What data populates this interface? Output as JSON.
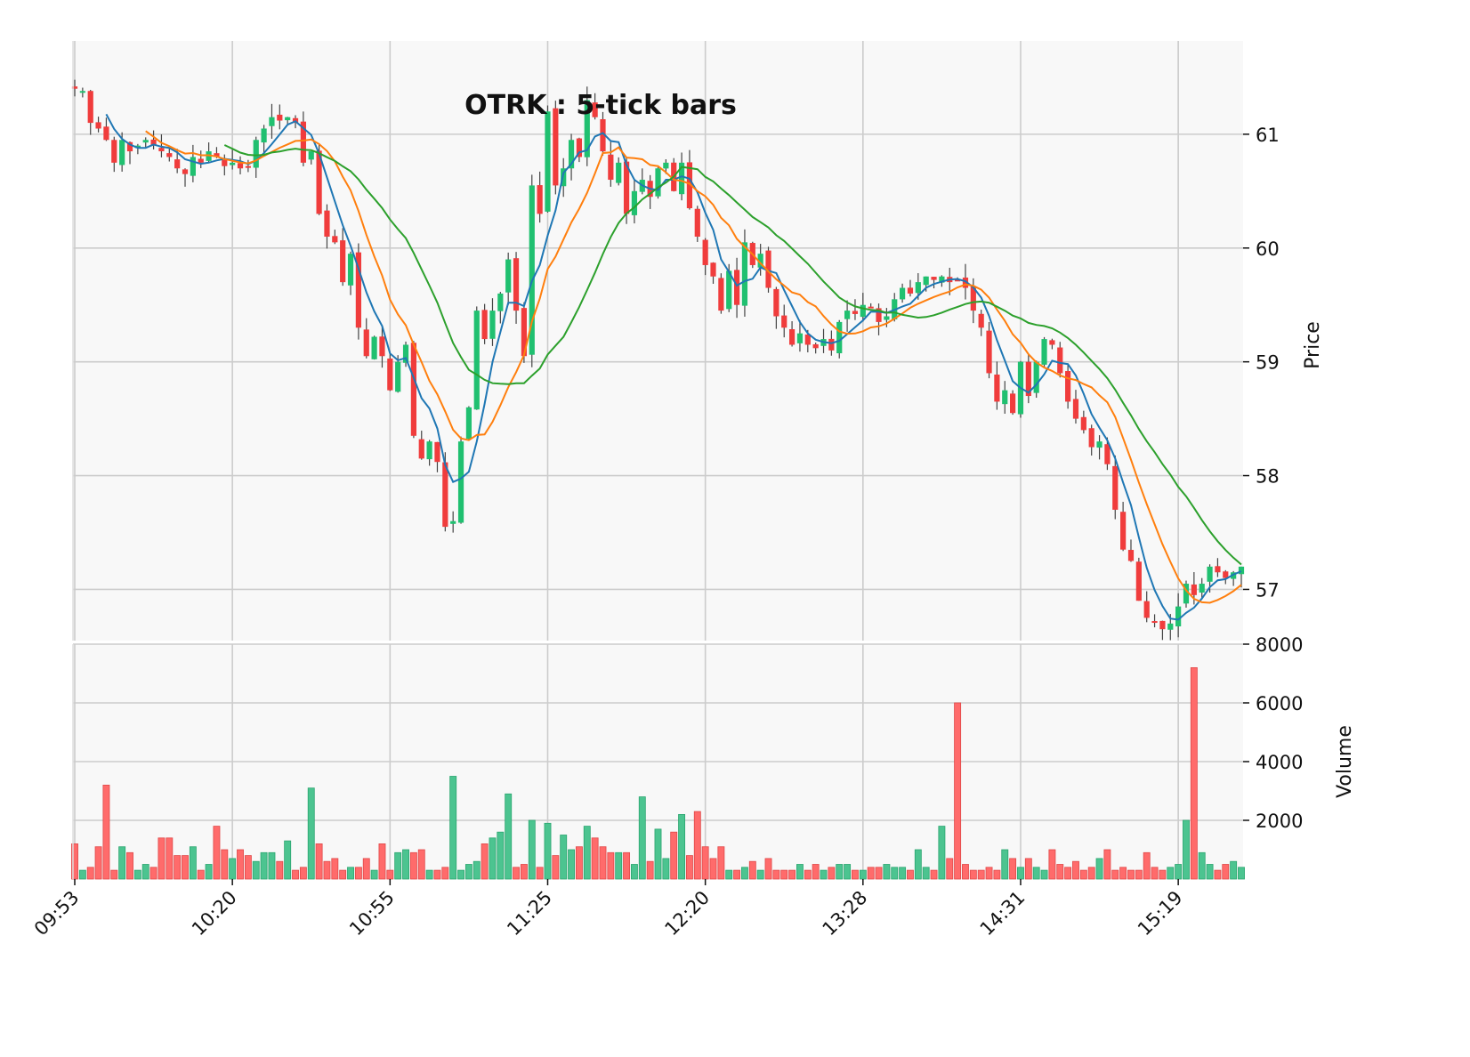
{
  "chart_data": {
    "type": "candlestick",
    "title": "OTRK : 5-tick bars",
    "colors": {
      "up": "#20c070",
      "down": "#f03c3c",
      "volume_up": "#4cc490",
      "volume_down": "#ff6b6b",
      "sma_fast": "#1f77b4",
      "sma_mid": "#ff7f0e",
      "sma_slow": "#2ca02c",
      "plot_background": "#f8f8f8",
      "grid": "#cccccc"
    },
    "grid": true,
    "price_panel": {
      "ylabel": "Price",
      "ylim": [
        56.55,
        61.82
      ],
      "yticks": [
        57,
        58,
        59,
        60,
        61
      ],
      "ytick_labels": [
        "57",
        "58",
        "59",
        "60",
        "61"
      ]
    },
    "volume_panel": {
      "ylabel": "Volume",
      "ylim": [
        0,
        8000
      ],
      "yticks": [
        2000,
        4000,
        6000,
        8000
      ],
      "ytick_labels": [
        "2000",
        "4000",
        "6000",
        "8000"
      ]
    },
    "x_ticks": [
      {
        "index": 0,
        "label": "09:53"
      },
      {
        "index": 20,
        "label": "10:20"
      },
      {
        "index": 40,
        "label": "10:55"
      },
      {
        "index": 60,
        "label": "11:25"
      },
      {
        "index": 80,
        "label": "12:20"
      },
      {
        "index": 100,
        "label": "13:28"
      },
      {
        "index": 120,
        "label": "14:31"
      },
      {
        "index": 140,
        "label": "15:19"
      }
    ],
    "bars_close_anchors": [
      [
        0,
        61.4
      ],
      [
        1,
        61.38
      ],
      [
        2,
        61.1
      ],
      [
        3,
        61.05
      ],
      [
        4,
        60.95
      ],
      [
        5,
        60.75
      ],
      [
        6,
        60.95
      ],
      [
        7,
        60.85
      ],
      [
        8,
        60.9
      ],
      [
        9,
        60.95
      ],
      [
        10,
        60.9
      ],
      [
        11,
        60.85
      ],
      [
        12,
        60.8
      ],
      [
        13,
        60.7
      ],
      [
        14,
        60.65
      ],
      [
        15,
        60.8
      ],
      [
        16,
        60.75
      ],
      [
        17,
        60.85
      ],
      [
        18,
        60.8
      ],
      [
        19,
        60.72
      ],
      [
        20,
        60.75
      ],
      [
        21,
        60.7
      ],
      [
        22,
        60.72
      ],
      [
        23,
        60.95
      ],
      [
        24,
        61.05
      ],
      [
        25,
        61.15
      ],
      [
        26,
        61.12
      ],
      [
        27,
        61.15
      ],
      [
        28,
        61.1
      ],
      [
        29,
        60.75
      ],
      [
        30,
        60.85
      ],
      [
        31,
        60.3
      ],
      [
        32,
        60.1
      ],
      [
        33,
        60.05
      ],
      [
        34,
        59.7
      ],
      [
        35,
        59.95
      ],
      [
        36,
        59.3
      ],
      [
        37,
        59.05
      ],
      [
        38,
        59.22
      ],
      [
        39,
        59.05
      ],
      [
        40,
        58.75
      ],
      [
        41,
        59.0
      ],
      [
        42,
        59.15
      ],
      [
        43,
        58.35
      ],
      [
        44,
        58.15
      ],
      [
        45,
        58.3
      ],
      [
        46,
        58.12
      ],
      [
        47,
        57.55
      ],
      [
        48,
        57.6
      ],
      [
        49,
        58.3
      ],
      [
        50,
        58.6
      ],
      [
        51,
        59.45
      ],
      [
        52,
        59.2
      ],
      [
        53,
        59.45
      ],
      [
        54,
        59.6
      ],
      [
        55,
        59.9
      ],
      [
        56,
        59.45
      ],
      [
        57,
        59.05
      ],
      [
        58,
        60.55
      ],
      [
        59,
        60.3
      ],
      [
        60,
        61.2
      ],
      [
        61,
        60.55
      ],
      [
        62,
        60.7
      ],
      [
        63,
        60.95
      ],
      [
        64,
        60.8
      ],
      [
        65,
        61.3
      ],
      [
        66,
        61.15
      ],
      [
        67,
        60.85
      ],
      [
        68,
        60.6
      ],
      [
        69,
        60.75
      ],
      [
        70,
        60.3
      ],
      [
        71,
        60.5
      ],
      [
        72,
        60.6
      ],
      [
        73,
        60.45
      ],
      [
        74,
        60.7
      ],
      [
        75,
        60.75
      ],
      [
        76,
        60.5
      ],
      [
        77,
        60.75
      ],
      [
        78,
        60.35
      ],
      [
        79,
        60.1
      ],
      [
        80,
        59.85
      ],
      [
        81,
        59.75
      ],
      [
        82,
        59.45
      ],
      [
        83,
        59.8
      ],
      [
        84,
        59.5
      ],
      [
        85,
        60.05
      ],
      [
        86,
        59.85
      ],
      [
        87,
        59.95
      ],
      [
        88,
        59.65
      ],
      [
        89,
        59.4
      ],
      [
        90,
        59.3
      ],
      [
        91,
        59.15
      ],
      [
        92,
        59.25
      ],
      [
        93,
        59.15
      ],
      [
        94,
        59.12
      ],
      [
        95,
        59.2
      ],
      [
        96,
        59.1
      ],
      [
        97,
        59.35
      ],
      [
        98,
        59.45
      ],
      [
        99,
        59.42
      ],
      [
        100,
        59.5
      ],
      [
        101,
        59.48
      ],
      [
        102,
        59.35
      ],
      [
        103,
        59.4
      ],
      [
        104,
        59.55
      ],
      [
        105,
        59.65
      ],
      [
        106,
        59.6
      ],
      [
        107,
        59.7
      ],
      [
        108,
        59.75
      ],
      [
        109,
        59.72
      ],
      [
        110,
        59.75
      ],
      [
        111,
        59.7
      ],
      [
        112,
        59.72
      ],
      [
        113,
        59.65
      ],
      [
        114,
        59.45
      ],
      [
        115,
        59.3
      ],
      [
        116,
        58.9
      ],
      [
        117,
        58.65
      ],
      [
        118,
        58.75
      ],
      [
        119,
        58.55
      ],
      [
        120,
        59.0
      ],
      [
        121,
        58.7
      ],
      [
        122,
        59.0
      ],
      [
        123,
        59.2
      ],
      [
        124,
        59.15
      ],
      [
        125,
        58.9
      ],
      [
        126,
        58.65
      ],
      [
        127,
        58.5
      ],
      [
        128,
        58.4
      ],
      [
        129,
        58.25
      ],
      [
        130,
        58.3
      ],
      [
        131,
        58.1
      ],
      [
        132,
        57.7
      ],
      [
        133,
        57.35
      ],
      [
        134,
        57.25
      ],
      [
        135,
        56.9
      ],
      [
        136,
        56.75
      ],
      [
        137,
        56.72
      ],
      [
        138,
        56.65
      ],
      [
        139,
        56.7
      ],
      [
        140,
        56.85
      ],
      [
        141,
        57.05
      ],
      [
        142,
        56.95
      ],
      [
        143,
        57.05
      ],
      [
        144,
        57.2
      ],
      [
        145,
        57.15
      ],
      [
        146,
        57.1
      ],
      [
        147,
        57.15
      ],
      [
        148,
        57.2
      ]
    ],
    "volume_anchors": [
      [
        0,
        1200
      ],
      [
        1,
        300
      ],
      [
        2,
        400
      ],
      [
        3,
        1100
      ],
      [
        4,
        3200
      ],
      [
        5,
        300
      ],
      [
        6,
        1100
      ],
      [
        7,
        900
      ],
      [
        8,
        300
      ],
      [
        9,
        500
      ],
      [
        10,
        400
      ],
      [
        11,
        1400
      ],
      [
        12,
        1400
      ],
      [
        13,
        800
      ],
      [
        14,
        800
      ],
      [
        15,
        1100
      ],
      [
        16,
        300
      ],
      [
        17,
        500
      ],
      [
        18,
        1800
      ],
      [
        19,
        1000
      ],
      [
        20,
        700
      ],
      [
        21,
        1000
      ],
      [
        22,
        800
      ],
      [
        23,
        600
      ],
      [
        24,
        900
      ],
      [
        25,
        900
      ],
      [
        26,
        600
      ],
      [
        27,
        1300
      ],
      [
        28,
        300
      ],
      [
        29,
        400
      ],
      [
        30,
        3100
      ],
      [
        31,
        1200
      ],
      [
        32,
        600
      ],
      [
        33,
        700
      ],
      [
        34,
        300
      ],
      [
        35,
        400
      ],
      [
        36,
        400
      ],
      [
        37,
        700
      ],
      [
        38,
        300
      ],
      [
        39,
        1200
      ],
      [
        40,
        300
      ],
      [
        41,
        900
      ],
      [
        42,
        1000
      ],
      [
        43,
        900
      ],
      [
        44,
        1000
      ],
      [
        45,
        300
      ],
      [
        46,
        300
      ],
      [
        47,
        400
      ],
      [
        48,
        3500
      ],
      [
        49,
        300
      ],
      [
        50,
        500
      ],
      [
        51,
        600
      ],
      [
        52,
        1200
      ],
      [
        53,
        1400
      ],
      [
        54,
        1600
      ],
      [
        55,
        2900
      ],
      [
        56,
        400
      ],
      [
        57,
        500
      ],
      [
        58,
        2000
      ],
      [
        59,
        400
      ],
      [
        60,
        1900
      ],
      [
        61,
        800
      ],
      [
        62,
        1500
      ],
      [
        63,
        1000
      ],
      [
        64,
        1100
      ],
      [
        65,
        1800
      ],
      [
        66,
        1400
      ],
      [
        67,
        1100
      ],
      [
        68,
        900
      ],
      [
        69,
        900
      ],
      [
        70,
        900
      ],
      [
        71,
        500
      ],
      [
        72,
        2800
      ],
      [
        73,
        600
      ],
      [
        74,
        1700
      ],
      [
        75,
        700
      ],
      [
        76,
        1600
      ],
      [
        77,
        2200
      ],
      [
        78,
        800
      ],
      [
        79,
        2300
      ],
      [
        80,
        1100
      ],
      [
        81,
        700
      ],
      [
        82,
        1100
      ],
      [
        83,
        300
      ],
      [
        84,
        300
      ],
      [
        85,
        400
      ],
      [
        86,
        600
      ],
      [
        87,
        300
      ],
      [
        88,
        700
      ],
      [
        89,
        300
      ],
      [
        90,
        300
      ],
      [
        91,
        300
      ],
      [
        92,
        500
      ],
      [
        93,
        300
      ],
      [
        94,
        500
      ],
      [
        95,
        300
      ],
      [
        96,
        400
      ],
      [
        97,
        500
      ],
      [
        98,
        500
      ],
      [
        99,
        300
      ],
      [
        100,
        300
      ],
      [
        101,
        400
      ],
      [
        102,
        400
      ],
      [
        103,
        500
      ],
      [
        104,
        400
      ],
      [
        105,
        400
      ],
      [
        106,
        300
      ],
      [
        107,
        1000
      ],
      [
        108,
        400
      ],
      [
        109,
        300
      ],
      [
        110,
        1800
      ],
      [
        111,
        700
      ],
      [
        112,
        6000
      ],
      [
        113,
        500
      ],
      [
        114,
        300
      ],
      [
        115,
        300
      ],
      [
        116,
        400
      ],
      [
        117,
        300
      ],
      [
        118,
        1000
      ],
      [
        119,
        700
      ],
      [
        120,
        400
      ],
      [
        121,
        700
      ],
      [
        122,
        400
      ],
      [
        123,
        300
      ],
      [
        124,
        1000
      ],
      [
        125,
        500
      ],
      [
        126,
        400
      ],
      [
        127,
        600
      ],
      [
        128,
        300
      ],
      [
        129,
        400
      ],
      [
        130,
        700
      ],
      [
        131,
        1000
      ],
      [
        132,
        300
      ],
      [
        133,
        400
      ],
      [
        134,
        300
      ],
      [
        135,
        300
      ],
      [
        136,
        900
      ],
      [
        137,
        400
      ],
      [
        138,
        300
      ],
      [
        139,
        400
      ],
      [
        140,
        500
      ],
      [
        141,
        2000
      ],
      [
        142,
        7200
      ],
      [
        143,
        900
      ],
      [
        144,
        500
      ],
      [
        145,
        300
      ],
      [
        146,
        500
      ],
      [
        147,
        600
      ],
      [
        148,
        400
      ]
    ],
    "bar_count": 149,
    "volume_first_bar_color_rule": "same as candle direction",
    "series": [
      {
        "key": "sma_fast",
        "period": 5
      },
      {
        "key": "sma_mid",
        "period": 10
      },
      {
        "key": "sma_slow",
        "period": 20
      }
    ]
  }
}
